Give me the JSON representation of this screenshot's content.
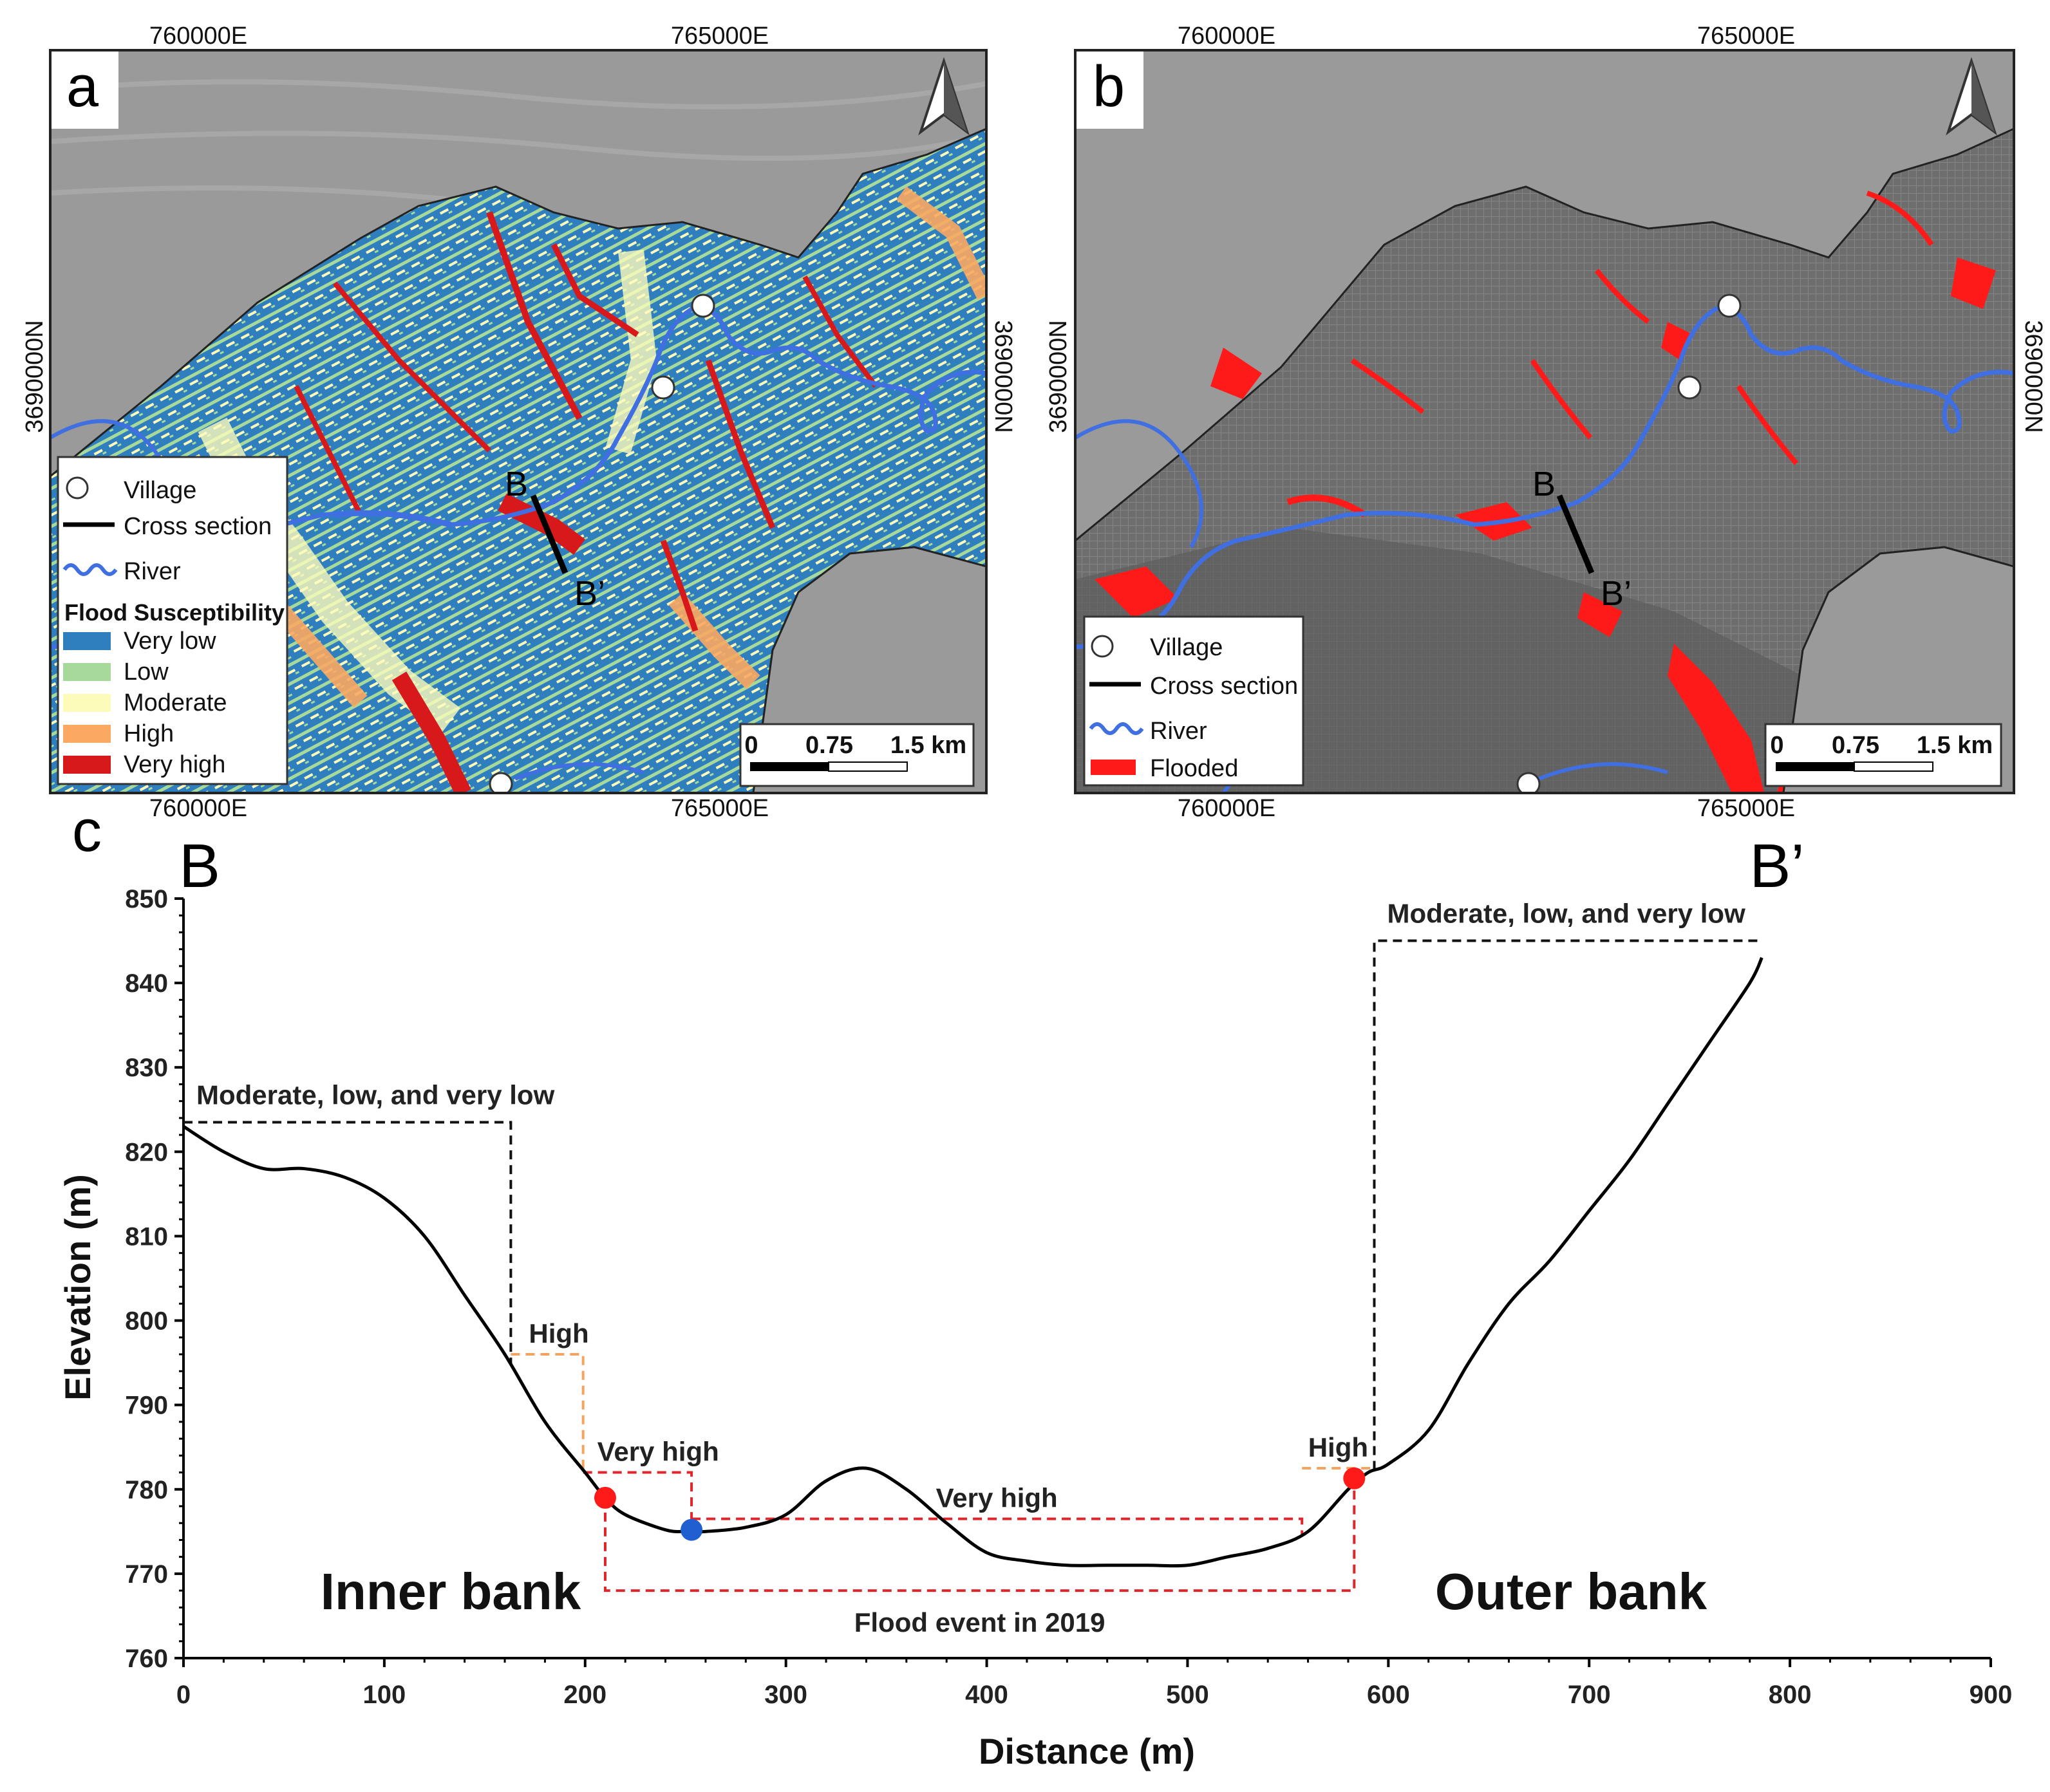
{
  "panel_a": {
    "letter": "a",
    "coords": {
      "e1": "760000E",
      "e2": "765000E",
      "n": "3690000N"
    },
    "section": {
      "start": "B",
      "end": "B’"
    },
    "legend": {
      "village": "Village",
      "cross_section": "Cross section",
      "river": "River",
      "heading": "Flood Susceptibility",
      "classes": [
        {
          "label": "Very low",
          "color": "#2f7fbf"
        },
        {
          "label": "Low",
          "color": "#a6d99a"
        },
        {
          "label": "Moderate",
          "color": "#fdfbba"
        },
        {
          "label": "High",
          "color": "#fba962"
        },
        {
          "label": "Very high",
          "color": "#d7191c"
        }
      ]
    },
    "scale": {
      "t0": "0",
      "t1": "0.75",
      "t2": "1.5 km"
    }
  },
  "panel_b": {
    "letter": "b",
    "coords": {
      "e1": "760000E",
      "e2": "765000E",
      "n": "3690000N"
    },
    "section": {
      "start": "B",
      "end": "B’"
    },
    "legend": {
      "village": "Village",
      "cross_section": "Cross section",
      "river": "River",
      "flooded": "Flooded",
      "flooded_color": "#ff1a1a"
    },
    "scale": {
      "t0": "0",
      "t1": "0.75",
      "t2": "1.5 km"
    }
  },
  "river_color": "#3f6fe0",
  "chart_data": {
    "type": "line",
    "panel_letter": "c",
    "end_labels": {
      "start": "B",
      "end": "B’"
    },
    "xlabel": "Distance (m)",
    "ylabel": "Elevation (m)",
    "xlim": [
      0,
      900
    ],
    "ylim": [
      760,
      850
    ],
    "xticks": [
      0,
      100,
      200,
      300,
      400,
      500,
      600,
      700,
      800,
      900
    ],
    "yticks": [
      760,
      770,
      780,
      790,
      800,
      810,
      820,
      830,
      840,
      850
    ],
    "profile": {
      "x": [
        0,
        20,
        40,
        60,
        80,
        100,
        120,
        140,
        160,
        180,
        200,
        210,
        220,
        240,
        250,
        260,
        280,
        300,
        320,
        340,
        360,
        380,
        400,
        420,
        440,
        460,
        480,
        500,
        520,
        540,
        560,
        580,
        590,
        600,
        620,
        640,
        660,
        680,
        700,
        720,
        740,
        760,
        780,
        786
      ],
      "y": [
        823,
        820,
        818,
        818,
        817,
        814.5,
        810,
        803,
        796,
        788,
        782,
        779,
        777,
        775.2,
        775,
        775,
        775.5,
        777,
        781,
        782.5,
        780,
        776,
        772.5,
        771.5,
        771,
        771,
        771,
        771,
        772,
        773,
        775,
        780,
        782,
        783,
        787,
        795,
        802,
        807,
        813,
        819,
        826,
        833,
        840,
        843
      ]
    },
    "zones": [
      {
        "label": "Moderate, low, and very low",
        "side": "left",
        "x0": 0,
        "x1": 163,
        "y_top": 823.5,
        "color": "#111111"
      },
      {
        "label": "High",
        "x0": 163,
        "x1": 199,
        "y_top": 796,
        "color": "#f4a460"
      },
      {
        "label": "Very high",
        "x0": 199,
        "x1": 253,
        "y_top": 782,
        "color": "#e0262b"
      },
      {
        "label": "Very high",
        "x0": 253,
        "x1": 557,
        "y_top": 776.5,
        "color": "#e0262b"
      },
      {
        "label": "High",
        "x0": 557,
        "x1": 593,
        "y_top": 782.5,
        "color": "#f4a460"
      },
      {
        "label": "Moderate, low, and very low",
        "side": "right",
        "x0": 593,
        "x1": 786,
        "y_top": 845,
        "color": "#111111"
      }
    ],
    "flood_event": {
      "label": "Flood event in 2019",
      "x0": 210,
      "x1": 583,
      "y_bottom": 768,
      "color": "#e0262b"
    },
    "markers": [
      {
        "x": 210,
        "y": 779,
        "color": "#ff1a1a"
      },
      {
        "x": 253,
        "y": 775.2,
        "color": "#1f5fd0"
      },
      {
        "x": 583,
        "y": 781.3,
        "color": "#ff1a1a"
      }
    ],
    "annotations": {
      "inner_bank": "Inner bank",
      "outer_bank": "Outer bank"
    }
  }
}
